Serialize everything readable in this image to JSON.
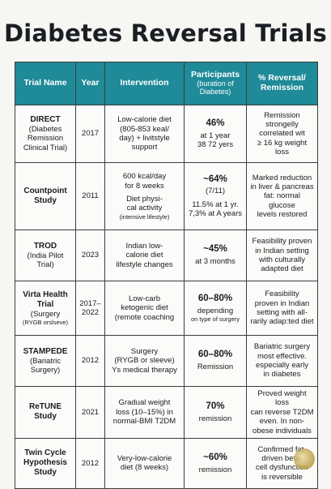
{
  "title": "Diabetes Reversal Trials",
  "headers": {
    "name": "Trial Name",
    "year": "Year",
    "intervention": "Intervention",
    "participants": "Participants",
    "participants_sub": "(buration of Diabetes)",
    "reversal": "% Reversal/ Remission"
  },
  "rows": [
    {
      "name": "DIRECT",
      "name_sub": "(Diabetes Remission Clinical Trial)",
      "year": "2017",
      "intervention": [
        "Low-calorie diet",
        "(805-853 keal/",
        "day) + livitstyle",
        "support"
      ],
      "pct": "46%",
      "participants": [
        "at 1 year",
        "38 72 yers"
      ],
      "remission": [
        "Remission",
        "strongelly",
        "correlated wit",
        "≥ 16 kg weight loss"
      ]
    },
    {
      "name": "Countpoint Study",
      "year": "2011",
      "intervention": [
        "600 kcal/day",
        "for 8 weeks",
        "Diet physi-",
        "cal activity"
      ],
      "intervention_note": "(intensive lifestyle)",
      "pct": "~64%",
      "participants": [
        "(7/11)",
        "11.5% at 1 yr.",
        "7,3% at A years"
      ],
      "remission": [
        "Marked reduction",
        "in liver & pancreas",
        "fat: normal glucose",
        "levels restored"
      ]
    },
    {
      "name": "TROD",
      "name_sub": "(India Pilot Trial)",
      "year": "2023",
      "intervention": [
        "Indian low-",
        "calorie diet",
        "lifestyle changes"
      ],
      "pct": "~45%",
      "participants": [
        "at 3 months"
      ],
      "remission": [
        "Feasibility proven",
        "in Indian setting",
        "with culturally",
        "adapted diet"
      ]
    },
    {
      "name": "Virta Health Trial",
      "name_sub": "(Surgery",
      "name_note": "(RYGB orslseve)",
      "year": "2017–2022",
      "intervention": [
        "Low-carb",
        "ketogenic diet",
        "(remote coaching"
      ],
      "pct": "60–80%",
      "participants": [
        "depending"
      ],
      "participants_note": "on type of surgery",
      "remission": [
        "Feasibility",
        "proven in Indian",
        "setting with all-",
        "rarily adap:ted diet"
      ]
    },
    {
      "name": "STAMPEDE",
      "name_sub": "(Bariatric Surgery)",
      "year": "2012",
      "intervention": [
        "Surgery",
        "(RYGB or sleeve)",
        "Ys medical therapy"
      ],
      "pct": "60–80%",
      "participants": [
        "Remission"
      ],
      "remission": [
        "Bariatric surgery",
        "most effective.",
        "especially early",
        "in diabetes"
      ]
    },
    {
      "name": "ReTUNE Study",
      "year": "2021",
      "intervention": [
        "Gradual weight",
        "loss (10–15%) in",
        "normal-BMI T2DM"
      ],
      "pct": "70%",
      "participants": [
        "remission"
      ],
      "remission": [
        "Proved weight loss",
        "can reverse T2DM",
        "even. In non-",
        "obese individuals"
      ]
    },
    {
      "name": "Twin Cycle Hypothesis Study",
      "year": "2012",
      "intervention": [
        "Very-low-calorie",
        "diet (8 weeks)"
      ],
      "pct": "~60%",
      "participants": [
        "remission"
      ],
      "remission": [
        "Confirmed fat-",
        "driven beta-",
        "cell dysfunction",
        "is reversible"
      ]
    }
  ],
  "colors": {
    "header_bg": "#1f8a98",
    "seal": "#b89a3e"
  }
}
